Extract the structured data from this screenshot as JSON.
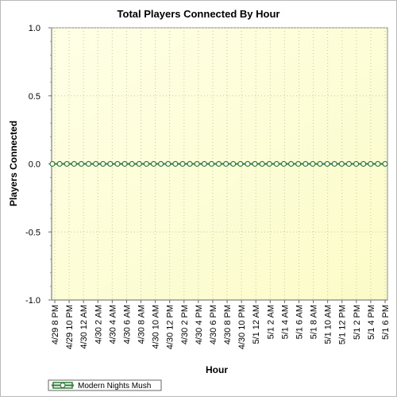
{
  "chart_data": {
    "type": "line",
    "title": "Total Players Connected By Hour",
    "xlabel": "Hour",
    "ylabel": "Players Connected",
    "ylim": [
      -1.0,
      1.0
    ],
    "y_ticks": [
      "1.0",
      "0.5",
      "0.0",
      "-0.5",
      "-1.0"
    ],
    "y_tick_values": [
      1.0,
      0.5,
      0.0,
      -0.5,
      -1.0
    ],
    "x_tick_labels": [
      "4/29 8 PM",
      "4/29 10 PM",
      "4/30 12 AM",
      "4/30 2 AM",
      "4/30 4 AM",
      "4/30 6 AM",
      "4/30 8 AM",
      "4/30 10 AM",
      "4/30 12 PM",
      "4/30 2 PM",
      "4/30 4 PM",
      "4/30 6 PM",
      "4/30 8 PM",
      "4/30 10 PM",
      "5/1 12 AM",
      "5/1 2 AM",
      "5/1 4 AM",
      "5/1 6 AM",
      "5/1 8 AM",
      "5/1 10 AM",
      "5/1 12 PM",
      "5/1 2 PM",
      "5/1 4 PM",
      "5/1 6 PM"
    ],
    "grid": true,
    "legend_position": "bottom-left",
    "series": [
      {
        "name": "Modern Nights Mush",
        "color": "#2e7d32",
        "marker": "circle",
        "values": [
          0,
          0,
          0,
          0,
          0,
          0,
          0,
          0,
          0,
          0,
          0,
          0,
          0,
          0,
          0,
          0,
          0,
          0,
          0,
          0,
          0,
          0,
          0,
          0,
          0,
          0,
          0,
          0,
          0,
          0,
          0,
          0,
          0,
          0,
          0,
          0,
          0,
          0,
          0,
          0,
          0,
          0,
          0,
          0,
          0,
          0,
          0
        ]
      }
    ]
  }
}
